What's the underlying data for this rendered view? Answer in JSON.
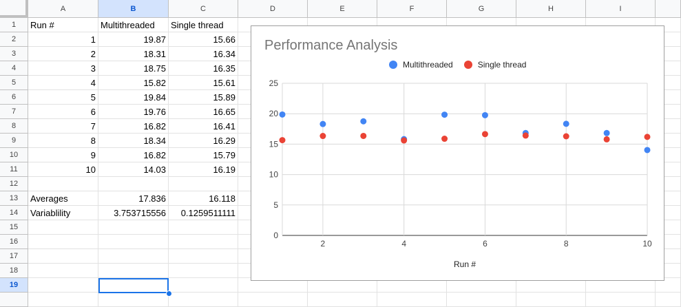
{
  "columns": [
    "A",
    "B",
    "C",
    "D",
    "E",
    "F",
    "G",
    "H",
    "I"
  ],
  "selected_column": "B",
  "rows": [
    "1",
    "2",
    "3",
    "4",
    "5",
    "6",
    "7",
    "8",
    "9",
    "10",
    "11",
    "12",
    "13",
    "14",
    "15",
    "16",
    "17",
    "18",
    "19"
  ],
  "selected_row": "19",
  "sheet": {
    "header": {
      "a": "Run #",
      "b": "Multithreaded",
      "c": "Single thread"
    },
    "data": [
      {
        "a": "1",
        "b": "19.87",
        "c": "15.66"
      },
      {
        "a": "2",
        "b": "18.31",
        "c": "16.34"
      },
      {
        "a": "3",
        "b": "18.75",
        "c": "16.35"
      },
      {
        "a": "4",
        "b": "15.82",
        "c": "15.61"
      },
      {
        "a": "5",
        "b": "19.84",
        "c": "15.89"
      },
      {
        "a": "6",
        "b": "19.76",
        "c": "16.65"
      },
      {
        "a": "7",
        "b": "16.82",
        "c": "16.41"
      },
      {
        "a": "8",
        "b": "18.34",
        "c": "16.29"
      },
      {
        "a": "9",
        "b": "16.82",
        "c": "15.79"
      },
      {
        "a": "10",
        "b": "14.03",
        "c": "16.19"
      }
    ],
    "averages": {
      "label": "Averages",
      "b": "17.836",
      "c": "16.118"
    },
    "variability": {
      "label": "Variablility",
      "b": "3.753715556",
      "c": "0.1259511111"
    }
  },
  "chart_data": {
    "type": "scatter",
    "title": "Performance Analysis",
    "xlabel": "Run #",
    "ylabel": "",
    "xlim": [
      1,
      10
    ],
    "ylim": [
      0,
      25
    ],
    "xticks": [
      2,
      4,
      6,
      8,
      10
    ],
    "yticks": [
      0,
      5,
      10,
      15,
      20,
      25
    ],
    "legend_position": "top",
    "x": [
      1,
      2,
      3,
      4,
      5,
      6,
      7,
      8,
      9,
      10
    ],
    "series": [
      {
        "name": "Multithreaded",
        "color": "#4285f4",
        "values": [
          19.87,
          18.31,
          18.75,
          15.82,
          19.84,
          19.76,
          16.82,
          18.34,
          16.82,
          14.03
        ]
      },
      {
        "name": "Single thread",
        "color": "#ea4335",
        "values": [
          15.66,
          16.34,
          16.35,
          15.61,
          15.89,
          16.65,
          16.41,
          16.29,
          15.79,
          16.19
        ]
      }
    ]
  }
}
